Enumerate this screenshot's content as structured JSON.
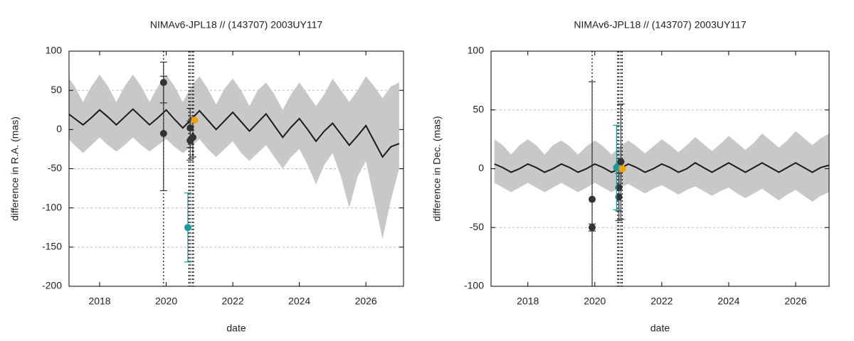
{
  "chart_data": [
    {
      "type": "line",
      "title": "NIMAv6-JPL18 // (143707) 2003UY117",
      "xlabel": "date",
      "ylabel": "difference in R.A. (mas)",
      "xlim": [
        2017.08,
        2027.13
      ],
      "ylim": [
        -200,
        100
      ],
      "xticks": [
        2018,
        2020,
        2022,
        2024,
        2026
      ],
      "yticks": [
        100,
        50,
        0,
        -50,
        -100,
        -150,
        -200
      ],
      "grid": true,
      "x": [
        2017,
        2017.25,
        2017.5,
        2017.75,
        2018,
        2018.25,
        2018.5,
        2018.75,
        2019,
        2019.25,
        2019.5,
        2019.75,
        2020,
        2020.25,
        2020.5,
        2020.75,
        2021,
        2021.25,
        2021.5,
        2021.75,
        2022,
        2022.25,
        2022.5,
        2022.75,
        2023,
        2023.25,
        2023.5,
        2023.75,
        2024,
        2024.25,
        2024.5,
        2024.75,
        2025,
        2025.25,
        2025.5,
        2025.75,
        2026,
        2026.25,
        2026.5,
        2026.75,
        2027
      ],
      "band": {
        "color": "#c8c8c8",
        "upper": [
          70,
          55,
          35,
          55,
          70,
          55,
          35,
          55,
          70,
          55,
          35,
          55,
          70,
          55,
          35,
          55,
          68,
          52,
          32,
          52,
          65,
          50,
          30,
          50,
          60,
          45,
          25,
          45,
          60,
          45,
          30,
          45,
          65,
          50,
          35,
          50,
          68,
          55,
          40,
          55,
          60
        ],
        "lower": [
          -10,
          -20,
          -30,
          -20,
          -10,
          -20,
          -28,
          -20,
          -10,
          -20,
          -28,
          -20,
          -12,
          -22,
          -30,
          -22,
          -12,
          -25,
          -35,
          -25,
          -15,
          -30,
          -40,
          -30,
          -20,
          -35,
          -50,
          -35,
          -25,
          -45,
          -70,
          -45,
          -30,
          -60,
          -100,
          -60,
          -40,
          -90,
          -140,
          -90,
          -50
        ]
      },
      "line": {
        "color": "#1a1a1a",
        "values": [
          22,
          14,
          6,
          15,
          25,
          16,
          6,
          16,
          26,
          16,
          6,
          15,
          25,
          13,
          2,
          13,
          24,
          12,
          0,
          11,
          22,
          10,
          -2,
          9,
          20,
          5,
          -10,
          3,
          14,
          0,
          -15,
          -2,
          8,
          -6,
          -20,
          -8,
          5,
          -15,
          -35,
          -22,
          -18
        ]
      },
      "points": [
        {
          "color": "#333333",
          "x": [
            2019.92,
            2019.92,
            2020.72,
            2020.72,
            2020.8
          ],
          "values": [
            60,
            -5,
            2,
            -14,
            -10
          ],
          "errors": [
            26,
            73,
            25,
            25,
            25
          ]
        },
        {
          "color": "#1a9a9a",
          "x": [
            2020.65
          ],
          "values": [
            -125
          ],
          "errors": [
            44
          ]
        },
        {
          "color": "#f5a000",
          "x": [
            2020.85
          ],
          "values": [
            12
          ],
          "errors": [
            0
          ]
        }
      ],
      "vlines": {
        "color": "#000000",
        "x": [
          2019.92,
          2020.68,
          2020.72,
          2020.78,
          2020.82
        ]
      }
    },
    {
      "type": "line",
      "title": "NIMAv6-JPL18 // (143707) 2003UY117",
      "xlabel": "date",
      "ylabel": "difference in Dec. (mas)",
      "xlim": [
        2016.9,
        2027.0
      ],
      "ylim": [
        -100,
        100
      ],
      "xticks": [
        2018,
        2020,
        2022,
        2024,
        2026
      ],
      "yticks": [
        100,
        50,
        0,
        -50,
        -100
      ],
      "grid": true,
      "x": [
        2017,
        2017.25,
        2017.5,
        2017.75,
        2018,
        2018.25,
        2018.5,
        2018.75,
        2019,
        2019.25,
        2019.5,
        2019.75,
        2020,
        2020.25,
        2020.5,
        2020.75,
        2021,
        2021.25,
        2021.5,
        2021.75,
        2022,
        2022.25,
        2022.5,
        2022.75,
        2023,
        2023.25,
        2023.5,
        2023.75,
        2024,
        2024.25,
        2024.5,
        2024.75,
        2025,
        2025.25,
        2025.5,
        2025.75,
        2026,
        2026.25,
        2026.5,
        2026.75,
        2027
      ],
      "band": {
        "color": "#c8c8c8",
        "upper": [
          25,
          20,
          12,
          20,
          25,
          20,
          12,
          20,
          24,
          19,
          12,
          19,
          24,
          19,
          12,
          19,
          24,
          19,
          13,
          19,
          25,
          20,
          14,
          20,
          27,
          21,
          15,
          21,
          28,
          22,
          16,
          22,
          30,
          24,
          18,
          24,
          32,
          26,
          20,
          26,
          30
        ],
        "lower": [
          -12,
          -16,
          -20,
          -16,
          -12,
          -16,
          -20,
          -16,
          -12,
          -16,
          -20,
          -16,
          -12,
          -16,
          -20,
          -16,
          -13,
          -17,
          -21,
          -17,
          -14,
          -18,
          -22,
          -18,
          -15,
          -19,
          -23,
          -19,
          -16,
          -21,
          -25,
          -21,
          -17,
          -22,
          -27,
          -22,
          -18,
          -23,
          -28,
          -23,
          -20
        ]
      },
      "line": {
        "color": "#1a1a1a",
        "values": [
          4,
          1,
          -3,
          0,
          4,
          1,
          -3,
          0,
          4,
          1,
          -3,
          0,
          4,
          1,
          -3,
          0,
          4,
          1,
          -3,
          0,
          4,
          1,
          -3,
          0,
          5,
          1,
          -3,
          1,
          5,
          1,
          -3,
          1,
          5,
          1,
          -3,
          1,
          5,
          1,
          -3,
          1,
          3
        ]
      },
      "points": [
        {
          "color": "#333333",
          "x": [
            2019.92,
            2019.92,
            2020.78,
            2020.72,
            2020.72
          ],
          "values": [
            -26,
            -50,
            6,
            -16,
            -24
          ],
          "errors": [
            100,
            3,
            49,
            20,
            20
          ]
        },
        {
          "color": "#1a9a9a",
          "x": [
            2020.65
          ],
          "values": [
            1
          ],
          "errors": [
            36
          ]
        },
        {
          "color": "#f5a000",
          "x": [
            2020.82
          ],
          "values": [
            0
          ],
          "errors": [
            0
          ]
        }
      ],
      "vlines": {
        "color": "#000000",
        "x": [
          2019.92,
          2020.68,
          2020.72,
          2020.78,
          2020.82
        ]
      }
    }
  ]
}
